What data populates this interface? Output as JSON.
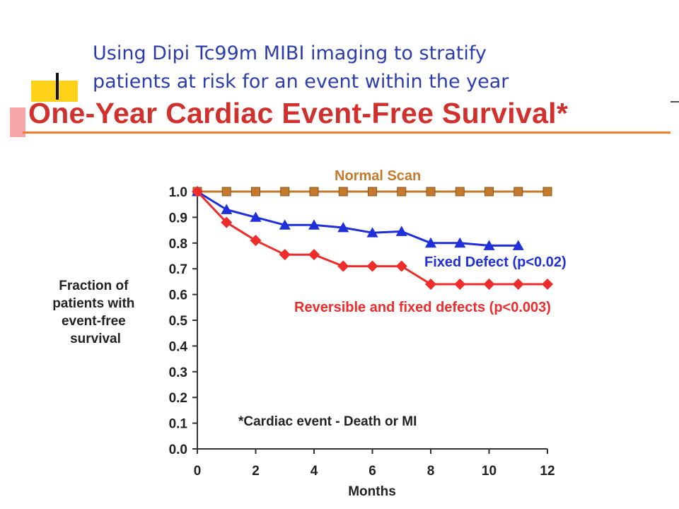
{
  "slide": {
    "title_line1": "Using Dipi Tc99m MIBI imaging to stratify",
    "title_line2": "patients at risk for an event within the year",
    "accent_colors": {
      "yellow": "#ffd21a",
      "pink": "#f6a6a6",
      "orange_rule": "#ef7d2a",
      "title_blue": "#2c3dab"
    }
  },
  "chart_data": {
    "type": "line",
    "title": "One-Year Cardiac Event-Free Survival*",
    "xlabel": "Months",
    "ylabel": "Fraction of patients with event-free survival",
    "xlim": [
      0,
      12
    ],
    "ylim": [
      0,
      1.0
    ],
    "xticks": [
      0,
      2,
      4,
      6,
      8,
      10,
      12
    ],
    "yticks": [
      "0.0",
      "0.1",
      "0.2",
      "0.3",
      "0.4",
      "0.5",
      "0.6",
      "0.7",
      "0.8",
      "0.9",
      "1.0"
    ],
    "grid": false,
    "footnote": "*Cardiac event - Death or MI",
    "series": [
      {
        "name": "Normal Scan",
        "color": "#c47a2c",
        "marker": "square",
        "x": [
          0,
          1,
          2,
          3,
          4,
          5,
          6,
          7,
          8,
          9,
          10,
          11,
          12
        ],
        "y": [
          1.0,
          1.0,
          1.0,
          1.0,
          1.0,
          1.0,
          1.0,
          1.0,
          1.0,
          1.0,
          1.0,
          1.0,
          1.0
        ]
      },
      {
        "name": "Fixed Defect (p<0.02)",
        "color": "#1f2fd9",
        "marker": "triangle",
        "x": [
          0,
          1,
          2,
          3,
          4,
          5,
          6,
          7,
          8,
          9,
          10,
          11
        ],
        "y": [
          1.0,
          0.93,
          0.9,
          0.87,
          0.87,
          0.86,
          0.84,
          0.845,
          0.8,
          0.8,
          0.79,
          0.79
        ]
      },
      {
        "name": "Reversible and fixed defects (p<0.003)",
        "color": "#ef2c2c",
        "marker": "diamond",
        "x": [
          0,
          1,
          2,
          3,
          4,
          5,
          6,
          7,
          8,
          9,
          10,
          11,
          12
        ],
        "y": [
          1.0,
          0.88,
          0.81,
          0.755,
          0.755,
          0.71,
          0.71,
          0.71,
          0.64,
          0.64,
          0.64,
          0.64,
          0.64
        ]
      }
    ]
  }
}
